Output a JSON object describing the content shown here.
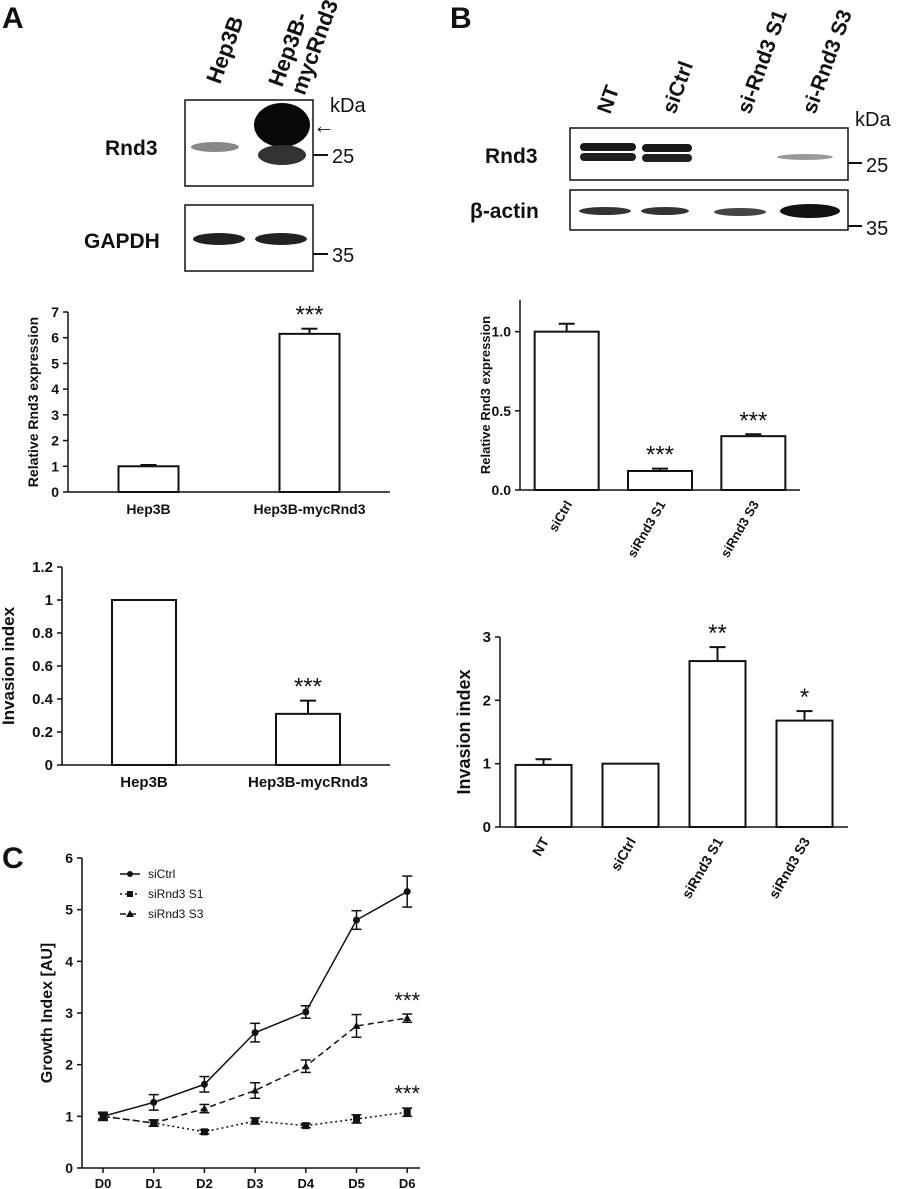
{
  "panels": {
    "a": "A",
    "b": "B",
    "c": "C"
  },
  "blot_a": {
    "lanes": [
      "Hep3B",
      "Hep3B-\nmycRnd3"
    ],
    "rows": [
      "Rnd3",
      "GAPDH"
    ],
    "unit": "kDa",
    "markers": [
      "25",
      "35"
    ],
    "arrow_glyph": "←"
  },
  "blot_b": {
    "lanes": [
      "NT",
      "siCtrl",
      "si-Rnd3 S1",
      "si-Rnd3 S3"
    ],
    "rows": [
      "Rnd3",
      "β-actin"
    ],
    "unit": "kDa",
    "markers": [
      "25",
      "35"
    ]
  },
  "chart_data": [
    {
      "id": "a-expression",
      "type": "bar",
      "categories": [
        "Hep3B",
        "Hep3B-mycRnd3"
      ],
      "values": [
        1.0,
        6.15
      ],
      "errors": [
        0.05,
        0.2
      ],
      "significance": [
        "",
        "***"
      ],
      "ylabel": "Relative Rnd3 expression",
      "ylim": [
        0,
        7
      ],
      "yticks": [
        "0",
        "1",
        "2",
        "3",
        "4",
        "5",
        "6",
        "7"
      ]
    },
    {
      "id": "a-invasion",
      "type": "bar",
      "categories": [
        "Hep3B",
        "Hep3B-mycRnd3"
      ],
      "values": [
        1.0,
        0.31
      ],
      "errors": [
        0,
        0.08
      ],
      "significance": [
        "",
        "***"
      ],
      "ylabel": "Invasion index",
      "ylim": [
        0,
        1.2
      ],
      "yticks": [
        "0",
        "0.2",
        "0.4",
        "0.6",
        "0.8",
        "1",
        "1.2"
      ]
    },
    {
      "id": "b-expression",
      "type": "bar",
      "categories": [
        "siCtrl",
        "siRnd3 S1",
        "siRnd3 S3"
      ],
      "values": [
        1.0,
        0.12,
        0.34
      ],
      "errors": [
        0.05,
        0.015,
        0.012
      ],
      "significance": [
        "",
        "***",
        "***"
      ],
      "ylabel": "Relative Rnd3 expression",
      "ylim": [
        0,
        1.2
      ],
      "yticks": [
        "0.0",
        "0.5",
        "1.0"
      ]
    },
    {
      "id": "b-invasion",
      "type": "bar",
      "categories": [
        "NT",
        "siCtrl",
        "siRnd3 S1",
        "siRnd3 S3"
      ],
      "values": [
        0.98,
        1.0,
        2.62,
        1.68
      ],
      "errors": [
        0.09,
        0,
        0.22,
        0.15
      ],
      "significance": [
        "",
        "",
        "**",
        "*"
      ],
      "ylabel": "Invasion index",
      "ylim": [
        0,
        3
      ],
      "yticks": [
        "0",
        "1",
        "2",
        "3"
      ]
    },
    {
      "id": "c-growth",
      "type": "line",
      "x": [
        "D0",
        "D1",
        "D2",
        "D3",
        "D4",
        "D5",
        "D6"
      ],
      "series": [
        {
          "name": "siCtrl",
          "values": [
            1.0,
            1.27,
            1.62,
            2.62,
            3.02,
            4.8,
            5.35
          ],
          "errors": [
            0.08,
            0.15,
            0.15,
            0.18,
            0.12,
            0.18,
            0.3
          ],
          "style": "solid",
          "marker": "circle"
        },
        {
          "name": "siRnd3 S1",
          "values": [
            1.0,
            0.87,
            0.7,
            0.91,
            0.82,
            0.95,
            1.08
          ],
          "errors": [
            0.05,
            0.06,
            0.04,
            0.06,
            0.04,
            0.08,
            0.08
          ],
          "style": "dotted",
          "marker": "square"
        },
        {
          "name": "siRnd3 S3",
          "values": [
            1.0,
            0.87,
            1.15,
            1.5,
            1.97,
            2.75,
            2.9
          ],
          "errors": [
            0.05,
            0.06,
            0.08,
            0.15,
            0.12,
            0.22,
            0.08
          ],
          "style": "dashed",
          "marker": "triangle"
        }
      ],
      "annotations": [
        "***",
        "***"
      ],
      "ylabel": "Growth Index [AU]",
      "ylim": [
        0,
        6
      ],
      "yticks": [
        "0",
        "1",
        "2",
        "3",
        "4",
        "5",
        "6"
      ]
    }
  ]
}
